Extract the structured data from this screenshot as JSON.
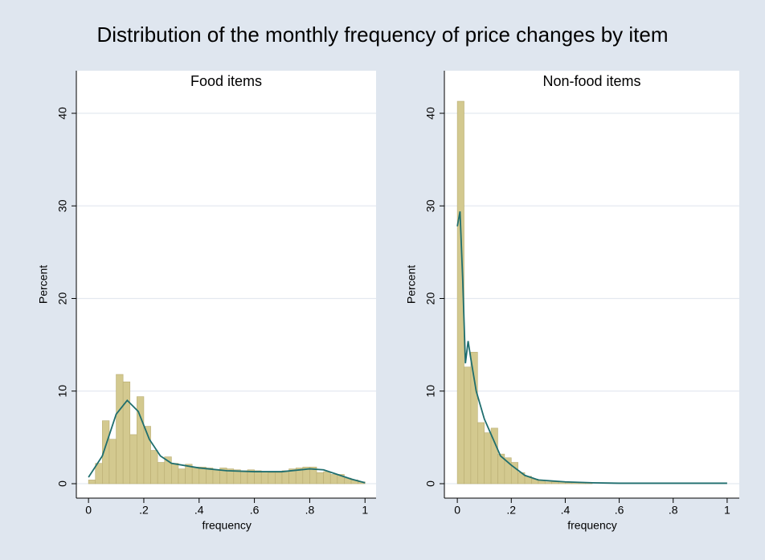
{
  "title": "Distribution of the monthly frequency of price changes by item",
  "chart_data": [
    {
      "type": "histogram",
      "title": "Food items",
      "x_label": "frequency",
      "y_label": "Percent",
      "bins": [
        0,
        0.025,
        0.05,
        0.075,
        0.1,
        0.125,
        0.15,
        0.175,
        0.2,
        0.225,
        0.25,
        0.275,
        0.3,
        0.325,
        0.35,
        0.375,
        0.4,
        0.425,
        0.45,
        0.475,
        0.5,
        0.525,
        0.55,
        0.575,
        0.6,
        0.625,
        0.65,
        0.675,
        0.7,
        0.725,
        0.75,
        0.775,
        0.8,
        0.825,
        0.85,
        0.875,
        0.9,
        0.925,
        0.95,
        0.975,
        1
      ],
      "values": [
        0.4,
        2.2,
        6.8,
        4.8,
        11.8,
        11.0,
        5.3,
        9.4,
        6.2,
        3.6,
        2.3,
        2.9,
        2.2,
        1.6,
        2.1,
        1.8,
        1.8,
        1.7,
        1.5,
        1.7,
        1.6,
        1.5,
        1.4,
        1.5,
        1.4,
        1.3,
        1.2,
        1.2,
        1.4,
        1.6,
        1.7,
        1.8,
        1.8,
        1.2,
        1.3,
        1.0,
        1.0,
        0.6,
        0.4,
        0.2
      ],
      "color": "#d3c98f",
      "edge_color": "#b9ad72",
      "density_x": [
        0,
        0.05,
        0.1,
        0.14,
        0.18,
        0.22,
        0.26,
        0.3,
        0.4,
        0.5,
        0.6,
        0.7,
        0.8,
        0.85,
        0.9,
        0.95,
        1
      ],
      "density_values": [
        0.7,
        3,
        7.5,
        9,
        7.8,
        4.8,
        3,
        2.2,
        1.7,
        1.4,
        1.3,
        1.3,
        1.6,
        1.5,
        1.0,
        0.5,
        0.1
      ],
      "line_color": "#1f6e6e",
      "xlim": [
        -0.044,
        1.04
      ],
      "ylim": [
        -1.56,
        44.6
      ],
      "xticks": [
        0,
        {
          "value": 0.2,
          "label": ".2"
        },
        {
          "value": 0.4,
          "label": ".4"
        },
        {
          "value": 0.6,
          "label": ".6"
        },
        {
          "value": 0.8,
          "label": ".8"
        },
        1
      ],
      "yticks": [
        0,
        10,
        20,
        30,
        40
      ],
      "grid": true
    },
    {
      "type": "histogram",
      "title": "Non-food items",
      "x_label": "frequency",
      "y_label": "Percent",
      "bins": [
        0,
        0.025,
        0.05,
        0.075,
        0.1,
        0.125,
        0.15,
        0.175,
        0.2,
        0.225,
        0.25,
        0.275,
        0.3,
        0.325,
        0.35,
        0.375,
        0.4,
        0.425,
        0.45,
        0.475,
        0.5
      ],
      "values": [
        41.3,
        12.6,
        14.2,
        6.6,
        5.5,
        6.0,
        3.2,
        2.8,
        2.3,
        1.2,
        0.8,
        0.5,
        0.4,
        0.2,
        0.2,
        0.2,
        0.1,
        0.1,
        0.1,
        0.1
      ],
      "color": "#d3c98f",
      "edge_color": "#b9ad72",
      "density_x": [
        0,
        0.01,
        0.02,
        0.03,
        0.04,
        0.05,
        0.07,
        0.1,
        0.13,
        0.16,
        0.2,
        0.25,
        0.3,
        0.4,
        0.5,
        0.6,
        0.8,
        1
      ],
      "density_values": [
        27.8,
        29.4,
        22,
        13,
        15.4,
        13.5,
        10,
        7,
        5,
        3,
        2,
        0.9,
        0.4,
        0.2,
        0.1,
        0.05,
        0.05,
        0.05
      ],
      "line_color": "#1f6e6e",
      "xlim": [
        -0.048,
        1.045
      ],
      "ylim": [
        -1.56,
        44.6
      ],
      "xticks": [
        0,
        {
          "value": 0.2,
          "label": ".2"
        },
        {
          "value": 0.4,
          "label": ".4"
        },
        {
          "value": 0.6,
          "label": ".6"
        },
        {
          "value": 0.8,
          "label": ".8"
        },
        1
      ],
      "yticks": [
        0,
        10,
        20,
        30,
        40
      ],
      "grid": true
    }
  ]
}
